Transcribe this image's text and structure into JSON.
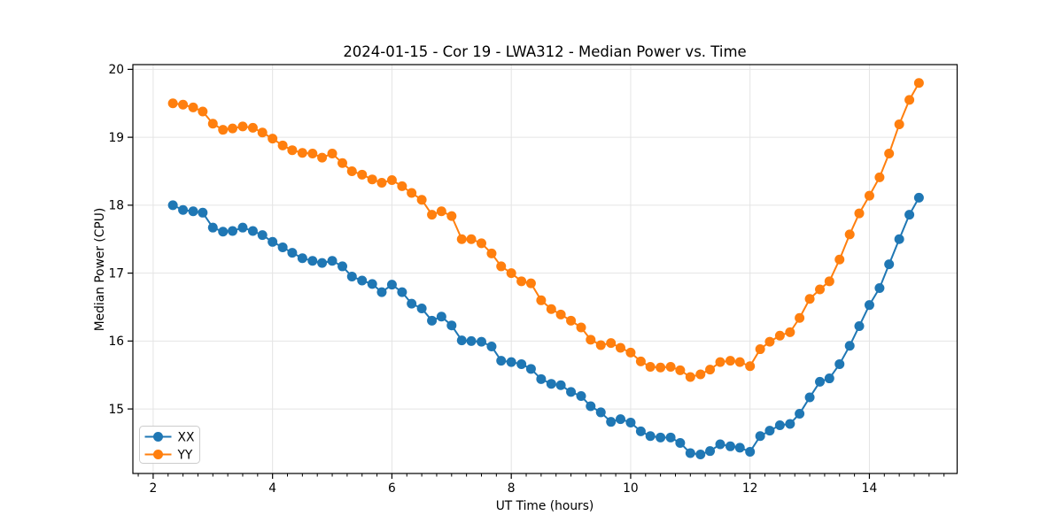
{
  "chart_data": {
    "type": "line",
    "title": "2024-01-15 - Cor 19 - LWA312 - Median Power vs. Time",
    "xlabel": "UT Time (hours)",
    "ylabel": "Median Power (CPU)",
    "xlim": [
      1.66,
      15.47
    ],
    "ylim": [
      14.05,
      20.07
    ],
    "xticks": [
      2,
      4,
      6,
      8,
      10,
      12,
      14
    ],
    "yticks": [
      15,
      16,
      17,
      18,
      19,
      20
    ],
    "x_minor_step": 0.25,
    "grid": true,
    "grid_color": "#e4e4e4",
    "spine_color": "#000000",
    "legend": {
      "position": "lower-left",
      "items": [
        "XX",
        "YY"
      ]
    },
    "x": [
      2.33,
      2.5,
      2.67,
      2.83,
      3.0,
      3.17,
      3.33,
      3.5,
      3.67,
      3.83,
      4.0,
      4.17,
      4.33,
      4.5,
      4.67,
      4.83,
      5.0,
      5.17,
      5.33,
      5.5,
      5.67,
      5.83,
      6.0,
      6.17,
      6.33,
      6.5,
      6.67,
      6.83,
      7.0,
      7.17,
      7.33,
      7.5,
      7.67,
      7.83,
      8.0,
      8.17,
      8.33,
      8.5,
      8.67,
      8.83,
      9.0,
      9.17,
      9.33,
      9.5,
      9.67,
      9.83,
      10.0,
      10.17,
      10.33,
      10.5,
      10.67,
      10.83,
      11.0,
      11.17,
      11.33,
      11.5,
      11.67,
      11.83,
      12.0,
      12.17,
      12.33,
      12.5,
      12.67,
      12.83,
      13.0,
      13.17,
      13.33,
      13.5,
      13.67,
      13.83,
      14.0,
      14.17,
      14.33,
      14.5,
      14.67,
      14.83
    ],
    "series": [
      {
        "name": "XX",
        "color": "#1f77b4",
        "marker": "circle",
        "values": [
          18.0,
          17.93,
          17.91,
          17.89,
          17.67,
          17.61,
          17.62,
          17.67,
          17.62,
          17.56,
          17.46,
          17.38,
          17.3,
          17.22,
          17.18,
          17.15,
          17.18,
          17.1,
          16.95,
          16.89,
          16.84,
          16.72,
          16.83,
          16.72,
          16.55,
          16.48,
          16.3,
          16.36,
          16.23,
          16.01,
          16.0,
          15.99,
          15.92,
          15.71,
          15.69,
          15.66,
          15.59,
          15.44,
          15.37,
          15.35,
          15.25,
          15.19,
          15.04,
          14.95,
          14.81,
          14.85,
          14.8,
          14.67,
          14.6,
          14.58,
          14.58,
          14.5,
          14.35,
          14.33,
          14.38,
          14.48,
          14.45,
          14.43,
          14.37,
          14.6,
          14.68,
          14.76,
          14.78,
          14.93,
          15.17,
          15.4,
          15.45,
          15.66,
          15.93,
          16.22,
          16.53,
          16.78,
          17.13,
          17.5,
          17.86,
          18.11
        ]
      },
      {
        "name": "YY",
        "color": "#ff7f0e",
        "marker": "circle",
        "values": [
          19.5,
          19.48,
          19.44,
          19.38,
          19.2,
          19.11,
          19.13,
          19.16,
          19.14,
          19.07,
          18.98,
          18.88,
          18.81,
          18.77,
          18.76,
          18.7,
          18.76,
          18.62,
          18.5,
          18.45,
          18.38,
          18.33,
          18.37,
          18.28,
          18.18,
          18.08,
          17.86,
          17.91,
          17.84,
          17.5,
          17.5,
          17.44,
          17.29,
          17.1,
          17.0,
          16.88,
          16.85,
          16.6,
          16.47,
          16.39,
          16.3,
          16.2,
          16.02,
          15.94,
          15.97,
          15.9,
          15.83,
          15.7,
          15.62,
          15.61,
          15.62,
          15.57,
          15.47,
          15.51,
          15.58,
          15.69,
          15.71,
          15.69,
          15.63,
          15.88,
          15.99,
          16.08,
          16.13,
          16.34,
          16.62,
          16.76,
          16.88,
          17.2,
          17.57,
          17.88,
          18.14,
          18.41,
          18.76,
          19.19,
          19.55,
          19.8
        ]
      }
    ]
  }
}
